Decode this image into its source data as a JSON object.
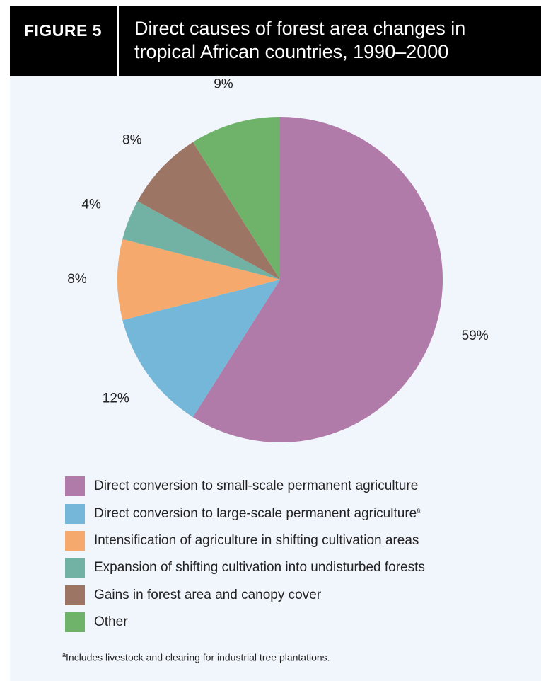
{
  "header": {
    "figure_label": "FIGURE 5",
    "title_line1": "Direct causes of forest area changes in",
    "title_line2": "tropical African countries, 1990–2000"
  },
  "chart_data": {
    "type": "pie",
    "title": "Direct causes of forest area changes in tropical African countries, 1990–2000",
    "slices": [
      {
        "name": "Direct conversion to small-scale permanent agriculture",
        "value": 59,
        "label": "59%",
        "color": "#b07ba8"
      },
      {
        "name": "Direct conversion to large-scale permanent agriculture",
        "value": 12,
        "label": "12%",
        "color": "#74b7d8",
        "legend_mark": "a"
      },
      {
        "name": "Intensification of agriculture in shifting cultivation areas",
        "value": 8,
        "label": "8%",
        "color": "#f5a96d"
      },
      {
        "name": "Expansion of shifting cultivation into undisturbed forests",
        "value": 4,
        "label": "4%",
        "color": "#72b2a5"
      },
      {
        "name": "Gains in forest area and canopy cover",
        "value": 8,
        "label": "8%",
        "color": "#9c7565"
      },
      {
        "name": "Other",
        "value": 9,
        "label": "9%",
        "color": "#6fb36a"
      }
    ],
    "legend_position": "bottom"
  },
  "footnote": {
    "mark": "a",
    "text": "Includes livestock and clearing for industrial tree plantations."
  }
}
